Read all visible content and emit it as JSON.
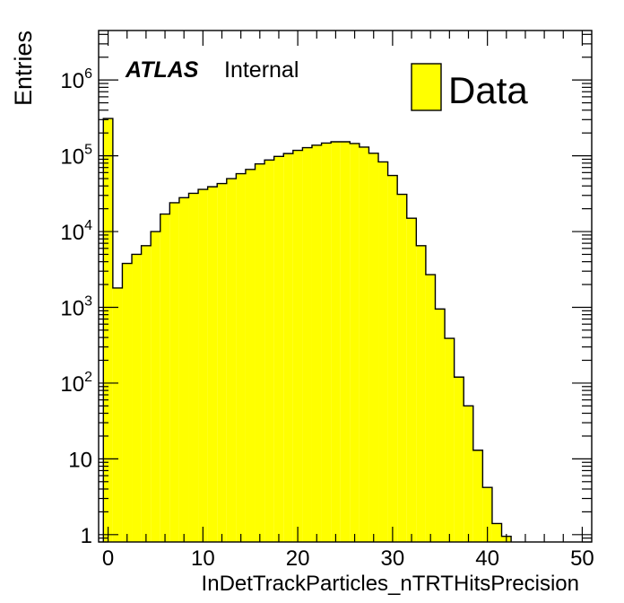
{
  "chart_data": {
    "type": "bar",
    "histogram": true,
    "ylabel": "Entries",
    "xlabel": "InDetTrackParticles_nTRTHitsPrecision",
    "ylog": true,
    "xlim": [
      -1,
      51
    ],
    "ylim": [
      0.8,
      4500000
    ],
    "grid": false,
    "atlas_label": "ATLAS",
    "internal_label": "Internal",
    "legend": {
      "entries": [
        "Data"
      ],
      "position": "top-right",
      "color": "#ffff00"
    },
    "fill_color": "#ffff00",
    "line_color": "#000000",
    "x_ticks": [
      {
        "value": 0,
        "label": "0"
      },
      {
        "value": 10,
        "label": "10"
      },
      {
        "value": 20,
        "label": "20"
      },
      {
        "value": 30,
        "label": "30"
      },
      {
        "value": 40,
        "label": "40"
      },
      {
        "value": 50,
        "label": "50"
      }
    ],
    "y_ticks": [
      {
        "value": 1,
        "base": "1",
        "exp": ""
      },
      {
        "value": 10,
        "base": "10",
        "exp": ""
      },
      {
        "value": 100,
        "base": "10",
        "exp": "2"
      },
      {
        "value": 1000,
        "base": "10",
        "exp": "3"
      },
      {
        "value": 10000,
        "base": "10",
        "exp": "4"
      },
      {
        "value": 100000,
        "base": "10",
        "exp": "5"
      },
      {
        "value": 1000000,
        "base": "10",
        "exp": "6"
      }
    ],
    "bin_edges_start": -0.5,
    "bin_width": 1,
    "values": [
      310000,
      1800,
      3800,
      5000,
      6500,
      10000,
      17000,
      24000,
      28000,
      32000,
      36000,
      39000,
      43000,
      50000,
      58000,
      66000,
      78000,
      88000,
      98000,
      107000,
      118000,
      128000,
      138000,
      147000,
      153000,
      153000,
      145000,
      130000,
      108000,
      83000,
      55000,
      31000,
      15000,
      6500,
      2700,
      950,
      390,
      120,
      50,
      13,
      4.2,
      1.4,
      0.95
    ]
  }
}
